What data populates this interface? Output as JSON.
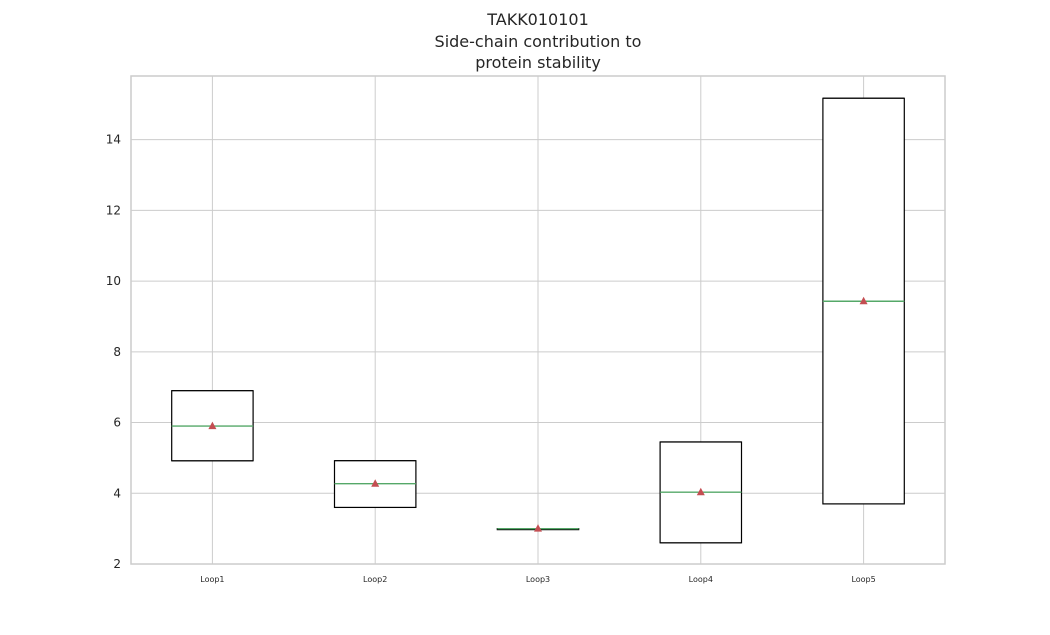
{
  "chart_data": {
    "type": "box",
    "title_lines": [
      "TAKK010101",
      "Side-chain contribution to",
      "protein stability"
    ],
    "xlabel": "",
    "ylabel": "",
    "ylim": [
      2,
      15.8
    ],
    "yticks": [
      2,
      4,
      6,
      8,
      10,
      12,
      14
    ],
    "grid": true,
    "categories": [
      "Loop1",
      "Loop2",
      "Loop3",
      "Loop4",
      "Loop5"
    ],
    "boxes": [
      {
        "label": "Loop1",
        "q1": 4.92,
        "median": 5.9,
        "q3": 6.9,
        "whisker_low": 4.92,
        "whisker_high": 6.9,
        "mean": 5.9
      },
      {
        "label": "Loop2",
        "q1": 3.6,
        "median": 4.27,
        "q3": 4.92,
        "whisker_low": 3.6,
        "whisker_high": 4.92,
        "mean": 4.27
      },
      {
        "label": "Loop3",
        "q1": 3.0,
        "median": 3.0,
        "q3": 3.0,
        "whisker_low": 3.0,
        "whisker_high": 3.0,
        "mean": 3.0
      },
      {
        "label": "Loop4",
        "q1": 2.6,
        "median": 4.03,
        "q3": 5.45,
        "whisker_low": 2.6,
        "whisker_high": 5.45,
        "mean": 4.03
      },
      {
        "label": "Loop5",
        "q1": 3.7,
        "median": 9.43,
        "q3": 15.17,
        "whisker_low": 3.7,
        "whisker_high": 15.17,
        "mean": 9.43
      }
    ],
    "colors": {
      "box": "#000000",
      "median": "#55a868",
      "mean_marker": "#c44e52",
      "grid": "#cccccc",
      "frame": "#cccccc"
    }
  }
}
